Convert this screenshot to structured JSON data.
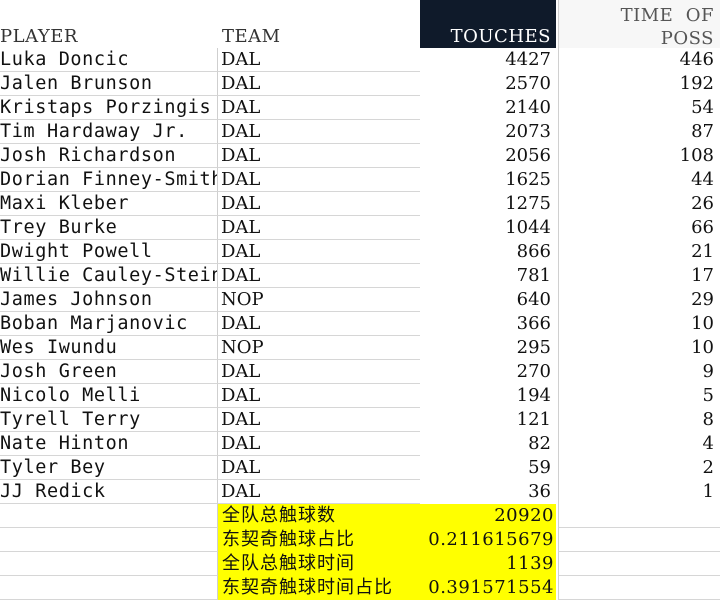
{
  "table": {
    "headers": {
      "player": "PLAYER",
      "team": "TEAM",
      "touches": "TOUCHES",
      "time_line1": "TIME  OF",
      "time_line2": "POSS"
    },
    "rows": [
      {
        "player": "Luka Doncic",
        "team": "DAL",
        "touches": "4427",
        "time": "446"
      },
      {
        "player": "Jalen Brunson",
        "team": "DAL",
        "touches": "2570",
        "time": "192"
      },
      {
        "player": "Kristaps Porzingis",
        "team": "DAL",
        "touches": "2140",
        "time": "54"
      },
      {
        "player": "Tim Hardaway Jr.",
        "team": "DAL",
        "touches": "2073",
        "time": "87"
      },
      {
        "player": "Josh Richardson",
        "team": "DAL",
        "touches": "2056",
        "time": "108"
      },
      {
        "player": "Dorian Finney-Smith",
        "team": "DAL",
        "touches": "1625",
        "time": "44"
      },
      {
        "player": "Maxi Kleber",
        "team": "DAL",
        "touches": "1275",
        "time": "26"
      },
      {
        "player": "Trey Burke",
        "team": "DAL",
        "touches": "1044",
        "time": "66"
      },
      {
        "player": "Dwight Powell",
        "team": "DAL",
        "touches": "866",
        "time": "21"
      },
      {
        "player": "Willie Cauley-Stein",
        "team": "DAL",
        "touches": "781",
        "time": "17"
      },
      {
        "player": "James Johnson",
        "team": "NOP",
        "touches": "640",
        "time": "29"
      },
      {
        "player": "Boban Marjanovic",
        "team": "DAL",
        "touches": "366",
        "time": "10"
      },
      {
        "player": "Wes Iwundu",
        "team": "NOP",
        "touches": "295",
        "time": "10"
      },
      {
        "player": "Josh Green",
        "team": "DAL",
        "touches": "270",
        "time": "9"
      },
      {
        "player": "Nicolo Melli",
        "team": "DAL",
        "touches": "194",
        "time": "5"
      },
      {
        "player": "Tyrell Terry",
        "team": "DAL",
        "touches": "121",
        "time": "8"
      },
      {
        "player": "Nate Hinton",
        "team": "DAL",
        "touches": "82",
        "time": "4"
      },
      {
        "player": "Tyler Bey",
        "team": "DAL",
        "touches": "59",
        "time": "2"
      },
      {
        "player": "JJ Redick",
        "team": "DAL",
        "touches": "36",
        "time": "1"
      }
    ]
  },
  "summary": [
    {
      "label": "全队总触球数",
      "value": "20920"
    },
    {
      "label": "东契奇触球占比",
      "value": "0.211615679"
    },
    {
      "label": "全队总触球时间",
      "value": "1139"
    },
    {
      "label": "东契奇触球时间占比",
      "value": "0.391571554"
    }
  ],
  "colors": {
    "header_highlight": "#0f1a2a",
    "summary_highlight": "#ffff00"
  }
}
